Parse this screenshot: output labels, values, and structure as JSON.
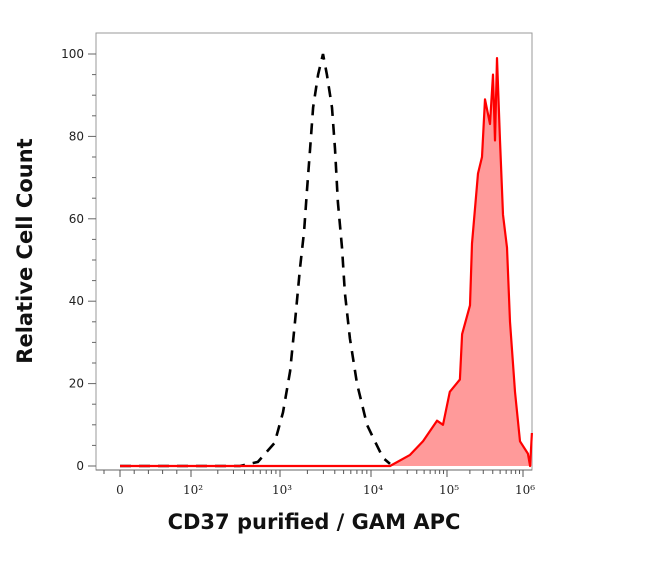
{
  "chart_data": {
    "type": "area",
    "title": "",
    "xlabel": "CD37 purified / GAM APC",
    "ylabel": "Relative Cell Count",
    "x_scale": "biexponential",
    "xlim": [
      -30,
      1300000
    ],
    "ylim": [
      0,
      105
    ],
    "grid": false,
    "legend": "none",
    "x_ticks": [
      {
        "value": 0,
        "label": "0"
      },
      {
        "value": 100,
        "label": "10²"
      },
      {
        "value": 1000,
        "label": "10³"
      },
      {
        "value": 10000,
        "label": "10⁴"
      },
      {
        "value": 100000,
        "label": "10⁵"
      },
      {
        "value": 1000000,
        "label": "10⁶"
      }
    ],
    "y_ticks": [
      {
        "value": 0,
        "label": "0"
      },
      {
        "value": 20,
        "label": "20"
      },
      {
        "value": 40,
        "label": "40"
      },
      {
        "value": 60,
        "label": "60"
      },
      {
        "value": 80,
        "label": "80"
      },
      {
        "value": 100,
        "label": "100"
      }
    ],
    "series": [
      {
        "style": "dashed-line",
        "color": "#000000",
        "x": [
          0,
          355,
          565,
          870,
          1080,
          1290,
          1460,
          1660,
          1840,
          1980,
          2140,
          2310,
          2620,
          2970,
          3280,
          3730,
          4020,
          4330,
          4800,
          5170,
          5870,
          7010,
          9030,
          10600,
          14400,
          17800
        ],
        "y": [
          0,
          0,
          1,
          5.6,
          13,
          23,
          35,
          48,
          57,
          67,
          77,
          87,
          95,
          100,
          95,
          87,
          77,
          64,
          53,
          42,
          31,
          20,
          10,
          7,
          2,
          0.5
        ]
      },
      {
        "style": "filled",
        "color": "#ff0000",
        "fill": "#ff9a9a",
        "x": [
          0,
          17800,
          32600,
          48300,
          73900,
          88500,
          109000,
          148000,
          158000,
          201000,
          213000,
          256000,
          289000,
          316000,
          368000,
          403000,
          428000,
          455000,
          498000,
          545000,
          616000,
          674000,
          785000,
          913000,
          1160000,
          1240000,
          1310000
        ],
        "y": [
          0,
          0,
          2.7,
          6,
          11,
          10,
          18,
          21,
          32,
          39,
          54,
          71,
          75,
          89,
          83,
          95,
          79,
          99,
          79,
          61,
          53,
          35,
          18,
          6,
          3,
          0,
          8
        ]
      }
    ]
  }
}
